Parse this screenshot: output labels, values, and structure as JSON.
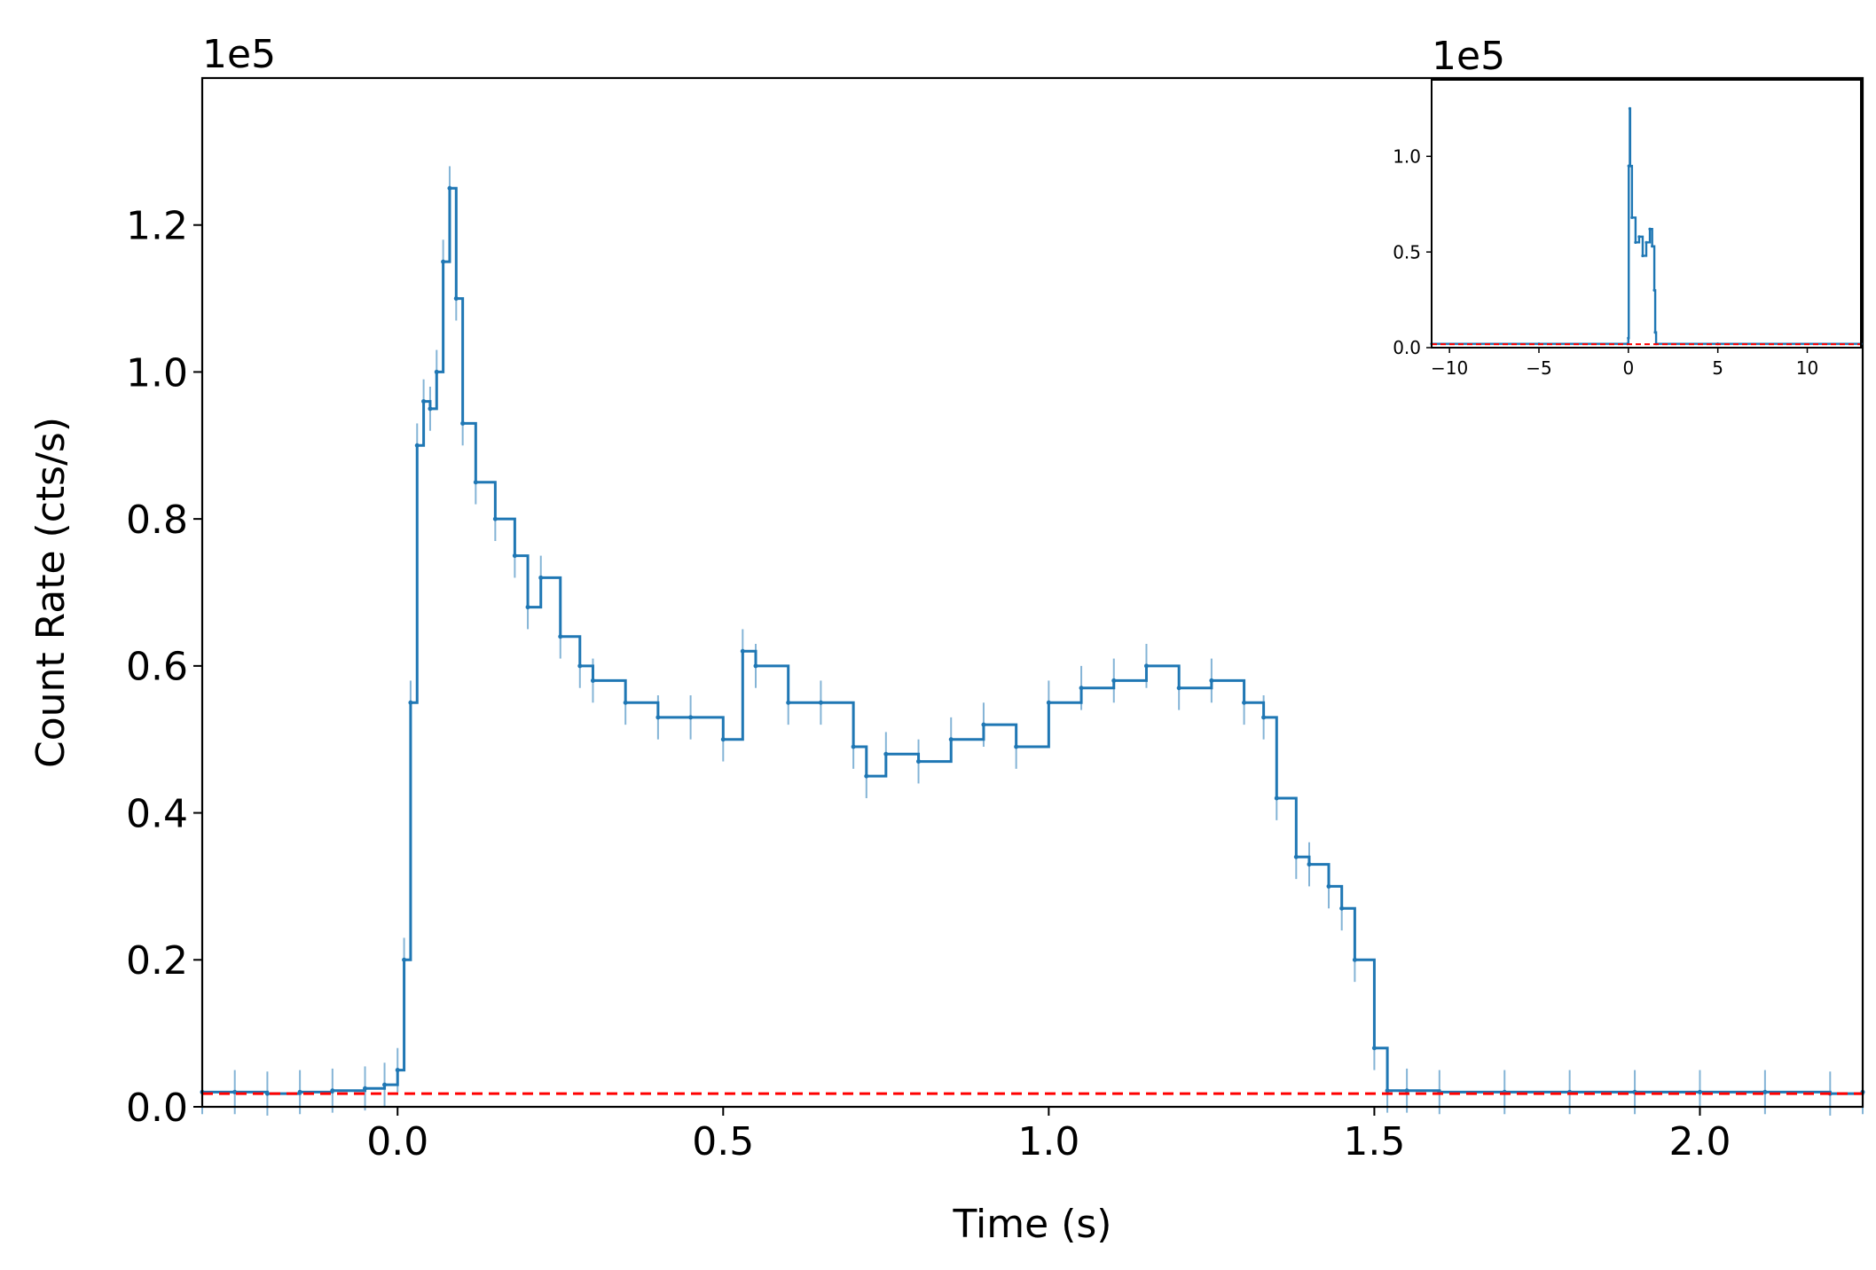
{
  "chart_data": [
    {
      "type": "line",
      "panel": "main",
      "title": "",
      "offset_label": "1e5",
      "xlabel": "Time (s)",
      "ylabel": "Count Rate (cts/s)",
      "xlim": [
        -0.3,
        2.25
      ],
      "ylim": [
        0.0,
        1.4
      ],
      "y_units_multiplier": 100000,
      "x_ticks": [
        0.0,
        0.5,
        1.0,
        1.5,
        2.0
      ],
      "x_tick_labels": [
        "0.0",
        "0.5",
        "1.0",
        "1.5",
        "2.0"
      ],
      "y_ticks": [
        0.0,
        0.2,
        0.4,
        0.6,
        0.8,
        1.0,
        1.2
      ],
      "y_tick_labels": [
        "0.0",
        "0.2",
        "0.4",
        "0.6",
        "0.8",
        "1.0",
        "1.2"
      ],
      "grid": false,
      "legend": "none",
      "series": [
        {
          "style": "steps-with-errorbars",
          "color": "#1f77b4",
          "x": [
            -0.3,
            -0.25,
            -0.2,
            -0.15,
            -0.1,
            -0.05,
            -0.02,
            0.0,
            0.01,
            0.02,
            0.03,
            0.04,
            0.05,
            0.06,
            0.07,
            0.08,
            0.09,
            0.1,
            0.12,
            0.15,
            0.18,
            0.2,
            0.22,
            0.25,
            0.28,
            0.3,
            0.35,
            0.4,
            0.45,
            0.5,
            0.53,
            0.55,
            0.6,
            0.65,
            0.7,
            0.72,
            0.75,
            0.8,
            0.85,
            0.9,
            0.95,
            1.0,
            1.05,
            1.1,
            1.15,
            1.2,
            1.25,
            1.3,
            1.33,
            1.35,
            1.38,
            1.4,
            1.43,
            1.45,
            1.47,
            1.5,
            1.52,
            1.55,
            1.6,
            1.7,
            1.8,
            1.9,
            2.0,
            2.1,
            2.2,
            2.25
          ],
          "y": [
            0.02,
            0.02,
            0.018,
            0.02,
            0.022,
            0.025,
            0.03,
            0.05,
            0.2,
            0.55,
            0.9,
            0.96,
            0.95,
            1.0,
            1.15,
            1.25,
            1.1,
            0.93,
            0.85,
            0.8,
            0.75,
            0.68,
            0.72,
            0.64,
            0.6,
            0.58,
            0.55,
            0.53,
            0.53,
            0.5,
            0.62,
            0.6,
            0.55,
            0.55,
            0.49,
            0.45,
            0.48,
            0.47,
            0.5,
            0.52,
            0.49,
            0.55,
            0.57,
            0.58,
            0.6,
            0.57,
            0.58,
            0.55,
            0.53,
            0.42,
            0.34,
            0.33,
            0.3,
            0.27,
            0.2,
            0.08,
            0.022,
            0.022,
            0.02,
            0.02,
            0.02,
            0.02,
            0.02,
            0.02,
            0.018,
            0.02
          ],
          "error_halfwidth": 0.03
        },
        {
          "style": "dashed-line",
          "color": "#ff0000",
          "x": [
            -0.3,
            2.25
          ],
          "y": [
            0.018,
            0.018
          ]
        }
      ]
    },
    {
      "type": "line",
      "panel": "inset",
      "title": "",
      "offset_label": "1e5",
      "xlabel": "",
      "ylabel": "",
      "xlim": [
        -11.0,
        13.0
      ],
      "ylim": [
        0.0,
        1.4
      ],
      "y_units_multiplier": 100000,
      "x_ticks": [
        -10,
        -5,
        0,
        5,
        10
      ],
      "x_tick_labels": [
        "−10",
        "−5",
        "0",
        "5",
        "10"
      ],
      "y_ticks": [
        0.0,
        0.5,
        1.0
      ],
      "y_tick_labels": [
        "0.0",
        "0.5",
        "1.0"
      ],
      "grid": false,
      "legend": "none",
      "series": [
        {
          "style": "steps",
          "color": "#1f77b4",
          "x": [
            -11.0,
            -5.0,
            -0.05,
            0.0,
            0.02,
            0.08,
            0.1,
            0.2,
            0.4,
            0.6,
            0.8,
            1.0,
            1.2,
            1.33,
            1.45,
            1.5,
            1.55,
            5.0,
            13.0
          ],
          "y": [
            0.02,
            0.02,
            0.02,
            0.05,
            0.95,
            1.25,
            0.95,
            0.68,
            0.55,
            0.58,
            0.48,
            0.55,
            0.62,
            0.53,
            0.3,
            0.08,
            0.02,
            0.02,
            0.02
          ]
        },
        {
          "style": "dashed-line",
          "color": "#ff0000",
          "x": [
            -11.0,
            13.0
          ],
          "y": [
            0.018,
            0.018
          ]
        }
      ]
    }
  ]
}
